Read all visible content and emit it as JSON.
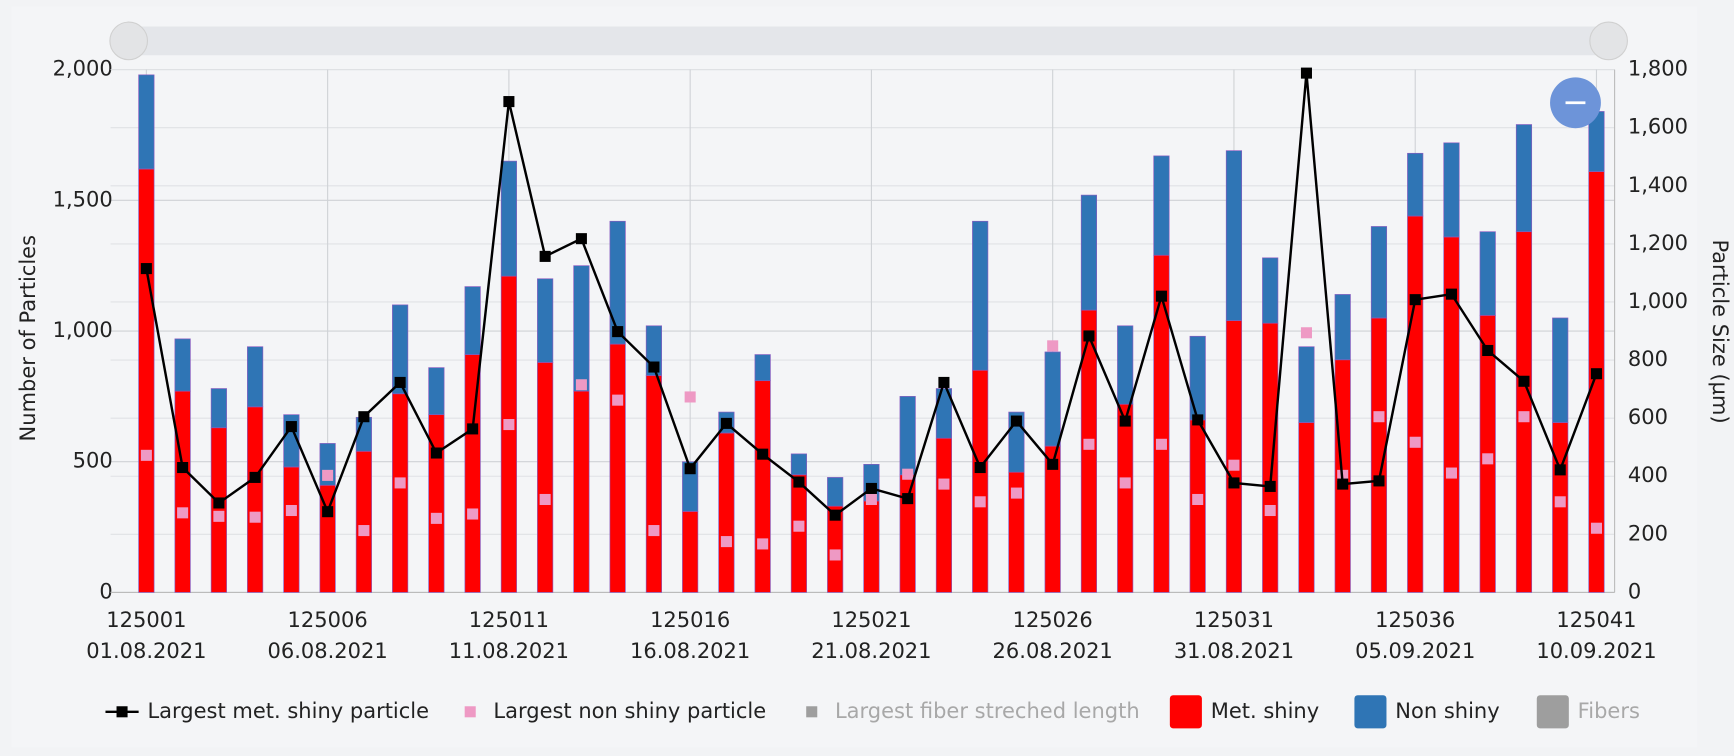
{
  "chart_data": {
    "type": "bar",
    "stacked": true,
    "y_label": "Number of Particles",
    "y2_label": "Particle Size (µm)",
    "categories": [
      "125001",
      null,
      null,
      null,
      null,
      "125006",
      null,
      null,
      null,
      null,
      "125011",
      null,
      null,
      null,
      null,
      "125016",
      null,
      null,
      null,
      null,
      "125021",
      null,
      null,
      null,
      null,
      "125026",
      null,
      null,
      null,
      null,
      "125031",
      null,
      null,
      null,
      null,
      "125036",
      null,
      null,
      null,
      null,
      "125041"
    ],
    "dates": [
      "01.08.2021",
      null,
      null,
      null,
      null,
      "06.08.2021",
      null,
      null,
      null,
      null,
      "11.08.2021",
      null,
      null,
      null,
      null,
      "16.08.2021",
      null,
      null,
      null,
      null,
      "21.08.2021",
      null,
      null,
      null,
      null,
      "26.08.2021",
      null,
      null,
      null,
      null,
      "31.08.2021",
      null,
      null,
      null,
      null,
      "05.09.2021",
      null,
      null,
      null,
      null,
      "10.09.2021"
    ],
    "series": [
      {
        "name": "Largest met. shiny particle",
        "type": "line",
        "color": "#000000",
        "axis": "y2",
        "values": [
          1115,
          430,
          308,
          396,
          571,
          278,
          605,
          723,
          480,
          563,
          1690,
          1157,
          1218,
          898,
          776,
          426,
          582,
          476,
          380,
          266,
          358,
          323,
          723,
          430,
          590,
          441,
          883,
          590,
          1020,
          594,
          377,
          365,
          1788,
          373,
          384,
          1008,
          1027,
          833,
          727,
          422,
          753
        ]
      },
      {
        "name": "Largest non shiny particle",
        "type": "scatter",
        "color": "#ee99c4",
        "axis": "y2",
        "values": [
          472,
          274,
          262,
          259,
          282,
          403,
          213,
          377,
          255,
          270,
          578,
          320,
          715,
          662,
          213,
          673,
          175,
          167,
          228,
          129,
          320,
          407,
          373,
          312,
          342,
          849,
          510,
          377,
          510,
          320,
          438,
          282,
          894,
          403,
          605,
          517,
          411,
          460,
          605,
          312,
          221
        ]
      },
      {
        "name": "Largest fiber streched length",
        "type": "scatter",
        "color": "#999999",
        "hidden": true
      },
      {
        "name": "Met. shiny",
        "type": "bar",
        "color": "#ff0000",
        "values": [
          1620,
          770,
          630,
          710,
          480,
          410,
          540,
          760,
          680,
          910,
          1210,
          880,
          770,
          950,
          830,
          310,
          610,
          810,
          450,
          330,
          350,
          450,
          590,
          850,
          460,
          560,
          1080,
          720,
          1290,
          660,
          1040,
          1030,
          650,
          890,
          1050,
          1440,
          1360,
          1060,
          1380,
          650,
          1610
        ]
      },
      {
        "name": "Non shiny",
        "type": "bar",
        "color": "#2f75b5",
        "values": [
          360,
          200,
          150,
          230,
          200,
          160,
          130,
          340,
          180,
          260,
          440,
          320,
          480,
          470,
          190,
          190,
          80,
          100,
          80,
          110,
          140,
          300,
          190,
          570,
          230,
          360,
          440,
          300,
          380,
          320,
          650,
          250,
          290,
          250,
          350,
          240,
          360,
          320,
          410,
          400,
          230
        ]
      },
      {
        "name": "Fibers",
        "type": "bar",
        "color": "#999999",
        "hidden": true
      }
    ],
    "ylim": [
      0,
      2000
    ],
    "yticks": [
      0,
      500,
      {
        "value": 1000,
        "label": "1,000"
      },
      {
        "value": 1500,
        "label": "1,500"
      },
      {
        "value": 2000,
        "label": "2,000"
      }
    ],
    "y2lim": [
      0,
      1800
    ],
    "y2ticks": [
      0,
      200,
      400,
      600,
      800,
      {
        "value": 1000,
        "label": "1,000"
      },
      {
        "value": 1200,
        "label": "1,200"
      },
      {
        "value": 1400,
        "label": "1,400"
      },
      {
        "value": 1600,
        "label": "1,600"
      },
      {
        "value": 1800,
        "label": "1,800"
      }
    ],
    "grid": true,
    "legend": "bottom"
  }
}
